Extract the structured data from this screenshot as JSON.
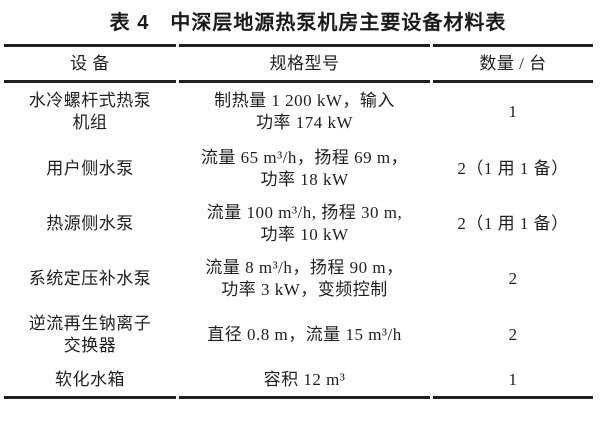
{
  "title": "表 4　中深层地源热泵机房主要设备材料表",
  "colors": {
    "text": "#1f1f1f",
    "rule": "#1f1f1f",
    "background": "#ffffff"
  },
  "table": {
    "headers": {
      "device": "设 备",
      "spec": "规格型号",
      "quantity": "数量 / 台"
    },
    "rows": [
      {
        "device": "水冷螺杆式热泵\n机组",
        "spec": "制热量 1 200 kW，输入\n功率 174 kW",
        "quantity": "1"
      },
      {
        "device": "用户侧水泵",
        "spec": "流量 65 m³/h，扬程 69 m，\n功率 18 kW",
        "quantity": "2（1 用 1 备）"
      },
      {
        "device": "热源侧水泵",
        "spec": "流量 100 m³/h, 扬程 30 m,\n功率 10 kW",
        "quantity": "2（1 用 1 备）"
      },
      {
        "device": "系统定压补水泵",
        "spec": "流量 8 m³/h，扬程 90 m，\n功率 3 kW，变频控制",
        "quantity": "2"
      },
      {
        "device": "逆流再生钠离子\n交换器",
        "spec": "直径 0.8 m，流量 15 m³/h",
        "quantity": "2"
      },
      {
        "device": "软化水箱",
        "spec": "容积 12 m³",
        "quantity": "1"
      }
    ]
  }
}
